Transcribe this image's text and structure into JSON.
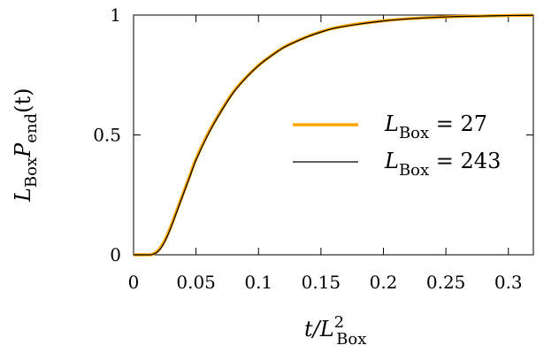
{
  "chart_data": {
    "type": "line",
    "xlabel_main": "t/L",
    "xlabel_sup": "2",
    "xlabel_sub": "Box",
    "ylabel_main": "L",
    "ylabel_sub1": "Box",
    "ylabel_mid": "P",
    "ylabel_sub2": "end",
    "ylabel_tail": "(t)",
    "xlim": [
      0,
      0.32
    ],
    "ylim": [
      0,
      1
    ],
    "xticks": [
      0,
      0.05,
      0.1,
      0.15,
      0.2,
      0.25,
      0.3
    ],
    "xtick_labels": [
      "0",
      "0.05",
      "0.1",
      "0.15",
      "0.2",
      "0.25",
      "0.3"
    ],
    "yticks": [
      0,
      0.5,
      1
    ],
    "ytick_labels": [
      "0",
      "0.5",
      "1"
    ],
    "grid": false,
    "legend_position": "center-right",
    "series": [
      {
        "name": "L_Box = 27",
        "legend_L": "L",
        "legend_sub": "Box",
        "legend_value": " =  27",
        "color": "#ffa500",
        "width": 3.5,
        "x": [
          0,
          0.01,
          0.015,
          0.02,
          0.025,
          0.03,
          0.035,
          0.04,
          0.045,
          0.05,
          0.06,
          0.07,
          0.08,
          0.09,
          0.1,
          0.11,
          0.12,
          0.13,
          0.14,
          0.15,
          0.16,
          0.18,
          0.2,
          0.22,
          0.24,
          0.26,
          0.28,
          0.3,
          0.32
        ],
        "y": [
          0,
          0.0,
          0.002,
          0.02,
          0.06,
          0.12,
          0.19,
          0.26,
          0.33,
          0.4,
          0.51,
          0.6,
          0.68,
          0.74,
          0.79,
          0.83,
          0.865,
          0.89,
          0.912,
          0.93,
          0.945,
          0.963,
          0.976,
          0.985,
          0.99,
          0.994,
          0.996,
          0.998,
          0.999
        ]
      },
      {
        "name": "L_Box = 243",
        "legend_L": "L",
        "legend_sub": "Box",
        "legend_value": " = 243",
        "color": "#000000",
        "width": 1.2,
        "x": [
          0,
          0.01,
          0.015,
          0.02,
          0.025,
          0.03,
          0.035,
          0.04,
          0.045,
          0.05,
          0.06,
          0.07,
          0.08,
          0.09,
          0.1,
          0.11,
          0.12,
          0.13,
          0.14,
          0.15,
          0.16,
          0.18,
          0.2,
          0.22,
          0.24,
          0.26,
          0.28,
          0.3,
          0.32
        ],
        "y": [
          0,
          0.0,
          0.001,
          0.016,
          0.055,
          0.115,
          0.185,
          0.255,
          0.325,
          0.395,
          0.505,
          0.597,
          0.677,
          0.738,
          0.789,
          0.829,
          0.864,
          0.889,
          0.911,
          0.929,
          0.944,
          0.962,
          0.975,
          0.984,
          0.99,
          0.994,
          0.996,
          0.998,
          0.999
        ]
      }
    ]
  }
}
